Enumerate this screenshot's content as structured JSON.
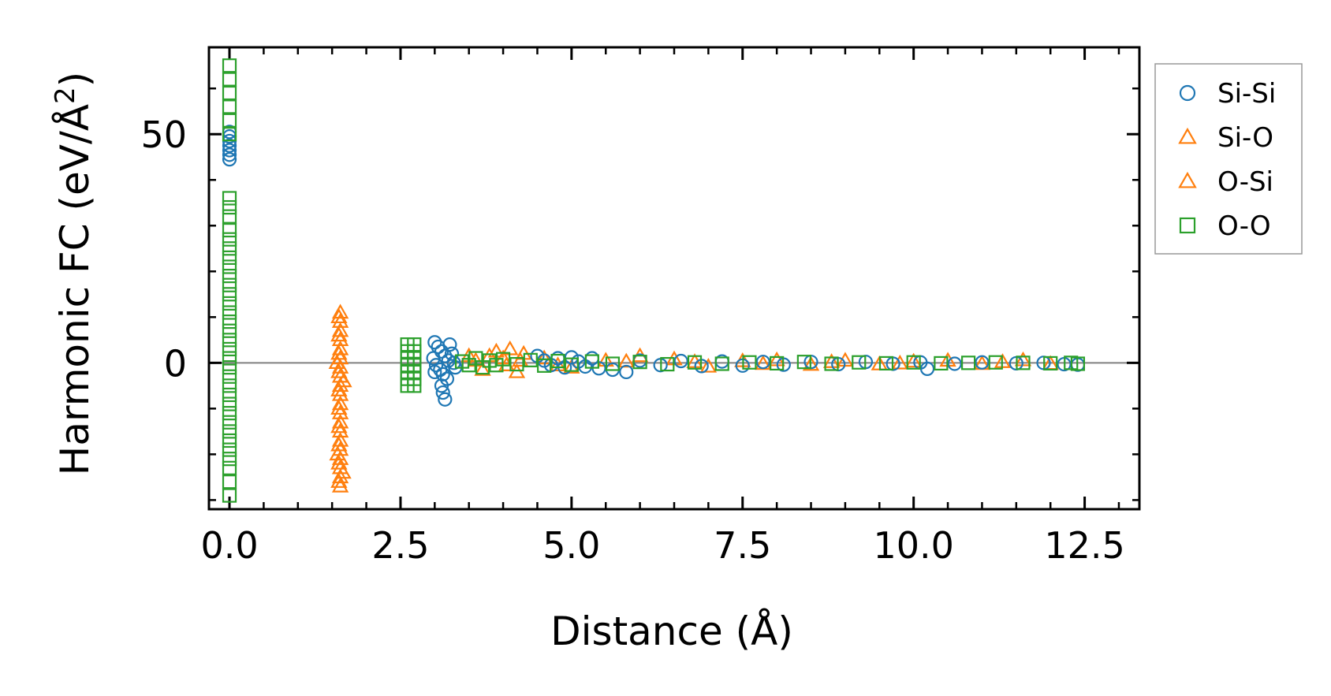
{
  "chart_data": {
    "type": "scatter",
    "title": "",
    "xlabel": "Distance (Å)",
    "ylabel": "Harmonic FC (eV/Å",
    "ylabel_superscript": "2",
    "ylabel_suffix": ")",
    "xlim": [
      -0.3,
      13.3
    ],
    "ylim": [
      -32,
      69
    ],
    "xticks": [
      0.0,
      2.5,
      5.0,
      7.5,
      10.0,
      12.5
    ],
    "xtick_labels": [
      "0.0",
      "2.5",
      "5.0",
      "7.5",
      "10.0",
      "12.5"
    ],
    "yticks": [
      0,
      50
    ],
    "ytick_labels": [
      "0",
      "50"
    ],
    "x_minor_step": 0.5,
    "y_minor_step": 10,
    "zero_line": true,
    "legend": {
      "location": "upper right, outside plot",
      "entries": [
        {
          "label": "Si-Si",
          "marker": "circle",
          "color": "#1f77b4"
        },
        {
          "label": "Si-O",
          "marker": "triangle",
          "color": "#ff7f0e"
        },
        {
          "label": "O-Si",
          "marker": "triangle",
          "color": "#ff7f0e"
        },
        {
          "label": "O-O",
          "marker": "square",
          "color": "#2ca02c"
        }
      ]
    },
    "series": [
      {
        "name": "Si-Si",
        "marker": "circle",
        "color": "#1f77b4",
        "points": [
          [
            0.0,
            44.5
          ],
          [
            0.0,
            45.5
          ],
          [
            0.0,
            46.5
          ],
          [
            0.0,
            47.5
          ],
          [
            0.0,
            48.5
          ],
          [
            0.0,
            49.5
          ],
          [
            0.0,
            50.5
          ],
          [
            3.0,
            4.5
          ],
          [
            3.05,
            3.5
          ],
          [
            3.1,
            2.5
          ],
          [
            3.15,
            1.5
          ],
          [
            3.2,
            0.5
          ],
          [
            3.02,
            -0.5
          ],
          [
            3.08,
            -1.5
          ],
          [
            3.12,
            -2.5
          ],
          [
            3.18,
            -3.5
          ],
          [
            3.1,
            -5
          ],
          [
            3.12,
            -6.5
          ],
          [
            3.15,
            -8
          ],
          [
            3.22,
            4
          ],
          [
            3.25,
            2
          ],
          [
            3.28,
            0
          ],
          [
            3.3,
            -1
          ],
          [
            2.98,
            1
          ],
          [
            3.0,
            -2
          ],
          [
            4.5,
            1.5
          ],
          [
            4.6,
            0.5
          ],
          [
            4.7,
            -0.5
          ],
          [
            4.8,
            1
          ],
          [
            4.9,
            -1
          ],
          [
            5.0,
            1.2
          ],
          [
            5.1,
            0.3
          ],
          [
            5.2,
            -0.8
          ],
          [
            5.3,
            1.0
          ],
          [
            5.4,
            -1.2
          ],
          [
            5.6,
            -1.5
          ],
          [
            5.8,
            -2.0
          ],
          [
            6.0,
            0.5
          ],
          [
            6.3,
            -0.5
          ],
          [
            6.6,
            0.4
          ],
          [
            6.9,
            -0.7
          ],
          [
            7.2,
            0.3
          ],
          [
            7.5,
            -0.6
          ],
          [
            7.8,
            0.2
          ],
          [
            8.1,
            -0.4
          ],
          [
            8.5,
            0.2
          ],
          [
            8.9,
            -0.3
          ],
          [
            9.3,
            0.2
          ],
          [
            9.7,
            -0.2
          ],
          [
            10.1,
            0.1
          ],
          [
            10.2,
            -1.3
          ],
          [
            10.6,
            -0.2
          ],
          [
            11.0,
            0.1
          ],
          [
            11.5,
            -0.1
          ],
          [
            11.9,
            0.0
          ],
          [
            12.2,
            -0.3
          ],
          [
            12.4,
            -0.4
          ]
        ]
      },
      {
        "name": "Si-O",
        "marker": "triangle",
        "color": "#ff7f0e",
        "points": [
          [
            1.62,
            11
          ],
          [
            1.62,
            9
          ],
          [
            1.62,
            7
          ],
          [
            1.62,
            5
          ],
          [
            1.62,
            3
          ],
          [
            1.62,
            1
          ],
          [
            1.62,
            -1
          ],
          [
            1.62,
            -3
          ],
          [
            1.62,
            -5
          ],
          [
            1.62,
            -7
          ],
          [
            1.62,
            -9
          ],
          [
            1.62,
            -11
          ],
          [
            1.62,
            -13
          ],
          [
            1.62,
            -15
          ],
          [
            1.62,
            -17
          ],
          [
            1.62,
            -19
          ],
          [
            1.62,
            -21
          ],
          [
            1.62,
            -23
          ],
          [
            1.62,
            -25
          ],
          [
            1.62,
            -27
          ],
          [
            1.57,
            0
          ],
          [
            1.67,
            -4
          ],
          [
            1.58,
            -20
          ],
          [
            1.66,
            -24
          ],
          [
            3.5,
            1.5
          ],
          [
            3.7,
            -1.5
          ],
          [
            3.9,
            2.5
          ],
          [
            4.0,
            1
          ],
          [
            4.1,
            3
          ],
          [
            4.2,
            -2
          ],
          [
            4.3,
            2
          ],
          [
            4.6,
            1
          ],
          [
            5.0,
            -1
          ],
          [
            5.5,
            0.5
          ],
          [
            6.0,
            1.5
          ],
          [
            6.5,
            0.8
          ],
          [
            7.0,
            -0.8
          ],
          [
            7.5,
            0.4
          ],
          [
            8.0,
            0.6
          ],
          [
            8.5,
            -0.4
          ],
          [
            9.0,
            0.5
          ],
          [
            9.5,
            -0.3
          ],
          [
            10.0,
            0.3
          ],
          [
            10.5,
            0.5
          ],
          [
            11.0,
            -0.2
          ],
          [
            11.6,
            0.6
          ],
          [
            12.0,
            -0.2
          ]
        ]
      },
      {
        "name": "O-Si",
        "marker": "triangle",
        "color": "#ff7f0e",
        "points": [
          [
            1.6,
            10
          ],
          [
            1.6,
            6
          ],
          [
            1.6,
            2
          ],
          [
            1.6,
            -2
          ],
          [
            1.6,
            -6
          ],
          [
            1.6,
            -10
          ],
          [
            1.6,
            -14
          ],
          [
            1.6,
            -18
          ],
          [
            1.6,
            -22
          ],
          [
            1.6,
            -26
          ],
          [
            3.6,
            0.5
          ],
          [
            3.8,
            1.5
          ],
          [
            4.05,
            -0.5
          ],
          [
            4.25,
            0.5
          ],
          [
            4.8,
            -0.5
          ],
          [
            5.8,
            0.3
          ],
          [
            6.8,
            0.2
          ],
          [
            7.8,
            -0.2
          ],
          [
            8.8,
            0.2
          ],
          [
            9.8,
            -0.1
          ],
          [
            11.3,
            0.2
          ]
        ]
      },
      {
        "name": "O-O",
        "marker": "square",
        "color": "#2ca02c",
        "points": [
          [
            0.0,
            65
          ],
          [
            0.0,
            62
          ],
          [
            0.0,
            59
          ],
          [
            0.0,
            56
          ],
          [
            0.0,
            53
          ],
          [
            0.0,
            50
          ],
          [
            0.0,
            36
          ],
          [
            0.0,
            34
          ],
          [
            0.0,
            32
          ],
          [
            0.0,
            29
          ],
          [
            0.0,
            27
          ],
          [
            0.0,
            25
          ],
          [
            0.0,
            23
          ],
          [
            0.0,
            21
          ],
          [
            0.0,
            19
          ],
          [
            0.0,
            17
          ],
          [
            0.0,
            15
          ],
          [
            0.0,
            13
          ],
          [
            0.0,
            11
          ],
          [
            0.0,
            9
          ],
          [
            0.0,
            7
          ],
          [
            0.0,
            5
          ],
          [
            0.0,
            3
          ],
          [
            0.0,
            1
          ],
          [
            0.0,
            -1
          ],
          [
            0.0,
            -3
          ],
          [
            0.0,
            -5
          ],
          [
            0.0,
            -7
          ],
          [
            0.0,
            -9
          ],
          [
            0.0,
            -11
          ],
          [
            0.0,
            -13
          ],
          [
            0.0,
            -15
          ],
          [
            0.0,
            -17
          ],
          [
            0.0,
            -19
          ],
          [
            0.0,
            -21
          ],
          [
            0.0,
            -23
          ],
          [
            0.0,
            -26
          ],
          [
            0.0,
            -29
          ],
          [
            2.6,
            4
          ],
          [
            2.6,
            2.5
          ],
          [
            2.6,
            1
          ],
          [
            2.6,
            -0.5
          ],
          [
            2.6,
            -2
          ],
          [
            2.6,
            -3.5
          ],
          [
            2.6,
            -5
          ],
          [
            2.7,
            4
          ],
          [
            2.7,
            2.5
          ],
          [
            2.7,
            1
          ],
          [
            2.7,
            -0.5
          ],
          [
            2.7,
            -2
          ],
          [
            2.7,
            -3.5
          ],
          [
            2.7,
            -5
          ],
          [
            3.4,
            0.3
          ],
          [
            3.5,
            -0.5
          ],
          [
            3.6,
            1
          ],
          [
            3.7,
            -1
          ],
          [
            3.8,
            0.5
          ],
          [
            3.9,
            -0.5
          ],
          [
            4.0,
            0.8
          ],
          [
            4.2,
            -0.3
          ],
          [
            4.4,
            0.6
          ],
          [
            4.6,
            -0.6
          ],
          [
            4.8,
            0.4
          ],
          [
            5.0,
            -0.4
          ],
          [
            5.3,
            0.3
          ],
          [
            5.6,
            -0.2
          ],
          [
            6.0,
            0.2
          ],
          [
            6.4,
            -0.3
          ],
          [
            6.8,
            0.1
          ],
          [
            7.2,
            -0.2
          ],
          [
            7.6,
            0.1
          ],
          [
            8.0,
            -0.1
          ],
          [
            8.4,
            0.2
          ],
          [
            8.8,
            -0.2
          ],
          [
            9.2,
            0.1
          ],
          [
            9.6,
            -0.1
          ],
          [
            10.0,
            0.1
          ],
          [
            10.4,
            -0.1
          ],
          [
            10.8,
            0.0
          ],
          [
            11.2,
            0.1
          ],
          [
            11.6,
            0.0
          ],
          [
            12.0,
            -0.1
          ],
          [
            12.3,
            0.0
          ],
          [
            12.4,
            -0.2
          ]
        ]
      }
    ]
  }
}
